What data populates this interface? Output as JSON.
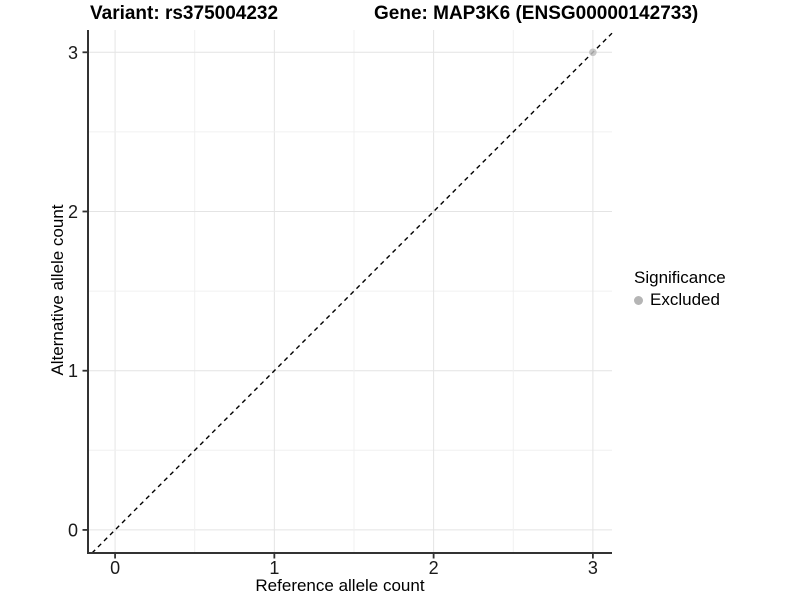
{
  "chart_data": {
    "type": "scatter",
    "titles": [
      "Variant: rs375004232",
      "Gene: MAP3K6 (ENSG00000142733)"
    ],
    "xlabel": "Reference allele count",
    "ylabel": "Alternative allele count",
    "x_ticks": [
      {
        "label": "0",
        "value": 0
      },
      {
        "label": "1",
        "value": 1
      },
      {
        "label": "2",
        "value": 2
      },
      {
        "label": "3",
        "value": 3
      }
    ],
    "y_ticks": [
      {
        "label": "0",
        "value": 0
      },
      {
        "label": "1",
        "value": 1
      },
      {
        "label": "2",
        "value": 2
      },
      {
        "label": "3",
        "value": 3
      }
    ],
    "xlim": [
      -0.17,
      3.12
    ],
    "ylim": [
      -0.145,
      3.14
    ],
    "grid": {
      "show": true,
      "major_step": 1,
      "minor_step": 0.5,
      "major_color": "#e4e4e4",
      "minor_color": "#f0f0f0"
    },
    "reference_line": {
      "kind": "identity",
      "slope": 1,
      "intercept": 0,
      "linestyle": "dashed",
      "color": "#000000"
    },
    "series": [
      {
        "name": "Excluded",
        "color": "#bebebe",
        "opacity": 0.85,
        "points": [
          {
            "x": 3,
            "y": 3
          }
        ]
      }
    ],
    "legend": {
      "title": "Significance",
      "position": "right",
      "items": [
        {
          "label": "Excluded",
          "color": "#b5b5b5"
        }
      ]
    },
    "axis_color": "#333333",
    "background": "#ffffff"
  }
}
